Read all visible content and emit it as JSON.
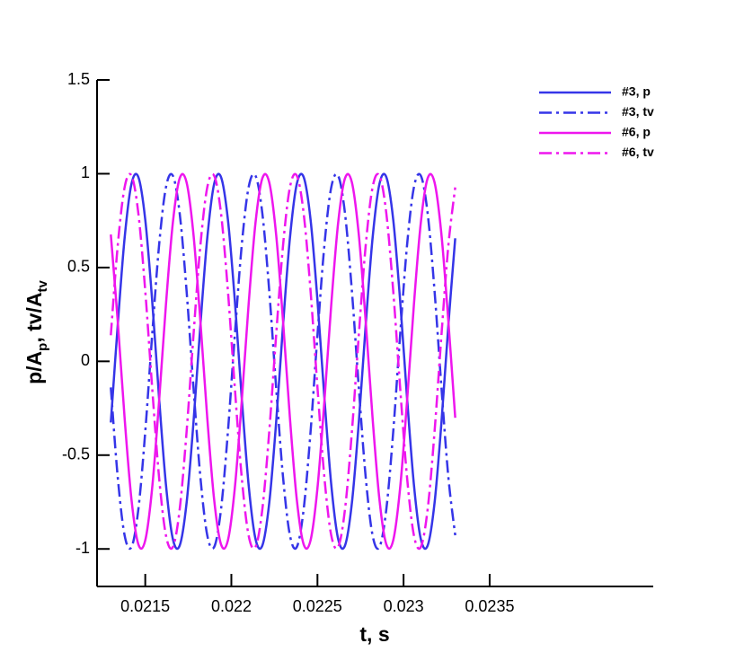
{
  "chart_data": {
    "type": "line",
    "xlabel": "t, s",
    "ylabel_parts": [
      {
        "text": "p/A"
      },
      {
        "text": "p",
        "sub": true
      },
      {
        "text": ", tv/A"
      },
      {
        "text": "tv",
        "sub": true
      }
    ],
    "x": [
      0.0213,
      0.02134,
      0.02138,
      0.02142,
      0.02146,
      0.0215,
      0.02154,
      0.02158,
      0.02162,
      0.02166,
      0.0217,
      0.02174,
      0.02178,
      0.02182,
      0.02186,
      0.0219,
      0.02194,
      0.02198,
      0.02202,
      0.02206,
      0.0221,
      0.02214,
      0.02218,
      0.02222,
      0.02226,
      0.0223,
      0.02234,
      0.02238,
      0.02242,
      0.02246,
      0.0225,
      0.02254,
      0.02258,
      0.02262,
      0.02266,
      0.0227,
      0.02274,
      0.02278,
      0.02282,
      0.02286,
      0.0229,
      0.02294,
      0.02298,
      0.02302,
      0.02306,
      0.0231,
      0.02314,
      0.02318,
      0.02322,
      0.02326,
      0.0233
    ],
    "series": [
      {
        "name": "#3, p",
        "color": "#3535e8",
        "dash": "solid",
        "values": [
          -0.326,
          0.191,
          0.656,
          0.946,
          0.982,
          0.755,
          0.326,
          -0.191,
          -0.656,
          -0.946,
          -0.982,
          -0.755,
          -0.326,
          0.191,
          0.656,
          0.946,
          0.982,
          0.755,
          0.326,
          -0.191,
          -0.656,
          -0.946,
          -0.982,
          -0.755,
          -0.326,
          0.191,
          0.656,
          0.946,
          0.982,
          0.755,
          0.326,
          -0.191,
          -0.656,
          -0.946,
          -0.982,
          -0.755,
          -0.326,
          0.191,
          0.656,
          0.946,
          0.982,
          0.755,
          0.326,
          -0.191,
          -0.656,
          -0.946,
          -0.982,
          -0.755,
          -0.326,
          0.191,
          0.656
        ]
      },
      {
        "name": "#3, tv",
        "color": "#3535e8",
        "dash": "dashdot",
        "values": [
          -0.139,
          -0.616,
          -0.927,
          -0.99,
          -0.788,
          -0.375,
          0.139,
          0.616,
          0.927,
          0.99,
          0.788,
          0.375,
          -0.139,
          -0.616,
          -0.927,
          -0.99,
          -0.788,
          -0.375,
          0.139,
          0.616,
          0.927,
          0.99,
          0.788,
          0.375,
          -0.139,
          -0.616,
          -0.927,
          -0.99,
          -0.788,
          -0.375,
          0.139,
          0.616,
          0.927,
          0.99,
          0.788,
          0.375,
          -0.139,
          -0.616,
          -0.927,
          -0.99,
          -0.788,
          -0.375,
          0.139,
          0.616,
          0.927,
          0.99,
          0.788,
          0.375,
          -0.139,
          -0.616,
          -0.927
        ]
      },
      {
        "name": "#6, p",
        "color": "#ee16ee",
        "dash": "solid",
        "values": [
          0.676,
          0.216,
          -0.301,
          -0.737,
          -0.976,
          -0.954,
          -0.676,
          -0.216,
          0.301,
          0.737,
          0.976,
          0.954,
          0.676,
          0.216,
          -0.301,
          -0.737,
          -0.976,
          -0.954,
          -0.676,
          -0.216,
          0.301,
          0.737,
          0.976,
          0.954,
          0.676,
          0.216,
          -0.301,
          -0.737,
          -0.976,
          -0.954,
          -0.676,
          -0.216,
          0.301,
          0.737,
          0.976,
          0.954,
          0.676,
          0.216,
          -0.301,
          -0.737,
          -0.976,
          -0.954,
          -0.676,
          -0.216,
          0.301,
          0.737,
          0.976,
          0.954,
          0.676,
          0.216,
          -0.301
        ]
      },
      {
        "name": "#6, tv",
        "color": "#ee16ee",
        "dash": "dashdot",
        "values": [
          0.139,
          0.616,
          0.927,
          0.99,
          0.788,
          0.375,
          -0.139,
          -0.616,
          -0.927,
          -0.99,
          -0.788,
          -0.375,
          0.139,
          0.616,
          0.927,
          0.99,
          0.788,
          0.375,
          -0.139,
          -0.616,
          -0.927,
          -0.99,
          -0.788,
          -0.375,
          0.139,
          0.616,
          0.927,
          0.99,
          0.788,
          0.375,
          -0.139,
          -0.616,
          -0.927,
          -0.99,
          -0.788,
          -0.375,
          0.139,
          0.616,
          0.927,
          0.99,
          0.788,
          0.375,
          -0.139,
          -0.616,
          -0.927,
          -0.99,
          -0.788,
          -0.375,
          0.139,
          0.616,
          0.927
        ]
      }
    ],
    "xlim": [
      0.02122,
      0.02445
    ],
    "xticks": [
      0.0215,
      0.022,
      0.0225,
      0.023,
      0.0235
    ],
    "ylim": [
      -1.2,
      1.5
    ],
    "yticks": [
      -1,
      -0.5,
      0,
      0.5,
      1,
      1.5
    ],
    "grid": false,
    "legend": "top-right"
  }
}
